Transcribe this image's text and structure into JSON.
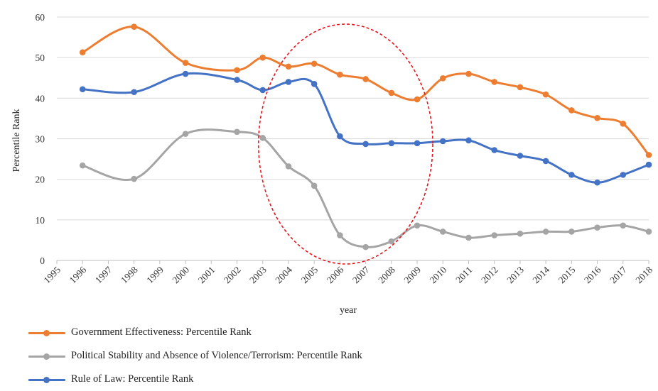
{
  "chart_data": {
    "type": "line",
    "xlabel": "year",
    "ylabel": "Percentile Rank",
    "ylim": [
      0,
      60
    ],
    "yticks": [
      0,
      10,
      20,
      30,
      40,
      50,
      60
    ],
    "xticks": [
      "1995",
      "1996",
      "1997",
      "1998",
      "1999",
      "2000",
      "2001",
      "2002",
      "2003",
      "2004",
      "2005",
      "2006",
      "2007",
      "2008",
      "2009",
      "2010",
      "2011",
      "2012",
      "2013",
      "2014",
      "2015",
      "2016",
      "2017",
      "2018"
    ],
    "grid": "horizontal",
    "legend_position": "bottom",
    "series": [
      {
        "name": "Government Effectiveness: Percentile Rank",
        "color": "#ED7D31",
        "x": [
          "1996",
          "1998",
          "2000",
          "2002",
          "2003",
          "2004",
          "2005",
          "2006",
          "2007",
          "2008",
          "2009",
          "2010",
          "2011",
          "2012",
          "2013",
          "2014",
          "2015",
          "2016",
          "2017",
          "2018"
        ],
        "values": [
          51.3,
          57.6,
          48.7,
          46.9,
          50.0,
          47.8,
          48.5,
          45.8,
          44.7,
          41.3,
          39.7,
          44.9,
          46.0,
          44.0,
          42.7,
          40.9,
          37.0,
          35.1,
          33.7,
          26.0
        ]
      },
      {
        "name": "Political Stability and Absence of Violence/Terrorism: Percentile Rank",
        "color": "#A5A5A5",
        "x": [
          "1996",
          "1998",
          "2000",
          "2002",
          "2003",
          "2004",
          "2005",
          "2006",
          "2007",
          "2008",
          "2009",
          "2010",
          "2011",
          "2012",
          "2013",
          "2014",
          "2015",
          "2016",
          "2017",
          "2018"
        ],
        "values": [
          23.4,
          20.1,
          31.2,
          31.7,
          30.2,
          23.2,
          18.4,
          6.2,
          3.3,
          4.7,
          8.6,
          7.1,
          5.6,
          6.2,
          6.6,
          7.1,
          7.1,
          8.1,
          8.6,
          7.1
        ]
      },
      {
        "name": "Rule of Law: Percentile Rank",
        "color": "#4472C4",
        "x": [
          "1996",
          "1998",
          "2000",
          "2002",
          "2003",
          "2004",
          "2005",
          "2006",
          "2007",
          "2008",
          "2009",
          "2010",
          "2011",
          "2012",
          "2013",
          "2014",
          "2015",
          "2016",
          "2017",
          "2018"
        ],
        "values": [
          42.2,
          41.5,
          46.0,
          44.5,
          42.0,
          44.0,
          43.5,
          30.6,
          28.7,
          28.9,
          28.9,
          29.4,
          29.6,
          27.2,
          25.8,
          24.5,
          21.1,
          19.2,
          21.1,
          23.6
        ]
      }
    ],
    "annotation": {
      "shape": "dashed-ellipse",
      "color": "#E8141E",
      "x_range": [
        "2003",
        "2009"
      ]
    }
  }
}
